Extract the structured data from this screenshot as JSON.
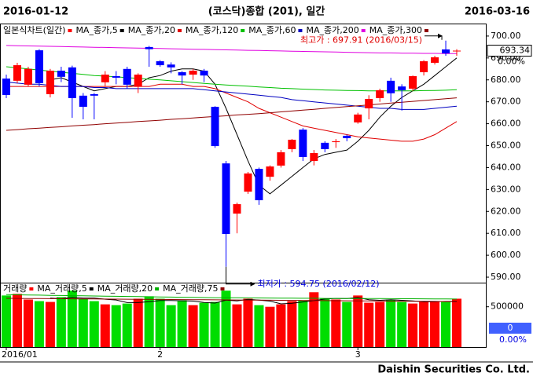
{
  "header": {
    "start_date": "2016-01-12",
    "title": "(코스닥)종합 (201), 일간",
    "end_date": "2016-03-16"
  },
  "footer": "Daishin Securities Co. Ltd.",
  "chart_data": [
    {
      "type": "candlestick",
      "name": "일본식차트(일간)",
      "up_color": "#ff0000",
      "down_color": "#0000ff",
      "categories": [
        "2016/01",
        null,
        null,
        null,
        null,
        null,
        null,
        null,
        null,
        null,
        null,
        null,
        null,
        null,
        "2",
        null,
        null,
        null,
        null,
        null,
        null,
        null,
        null,
        null,
        null,
        null,
        null,
        null,
        null,
        null,
        null,
        null,
        "3",
        null,
        null,
        null,
        null,
        null,
        null,
        null,
        null,
        null
      ],
      "open": [
        680.6,
        679.6,
        677.8,
        693.5,
        673.5,
        684.2,
        685.7,
        672.8,
        673.5,
        678.9,
        681.7,
        685,
        677,
        695,
        688.5,
        687,
        683.5,
        682.4,
        684.2,
        667.7,
        641.9,
        619,
        629,
        639.4,
        635.8,
        640.9,
        648.4,
        657.3,
        643,
        651.3,
        651.6,
        654.5,
        660.6,
        667,
        671.7,
        679.6,
        677,
        676,
        683.5,
        687.8,
        693.9,
        693
      ],
      "high": [
        682.4,
        687.8,
        686,
        694,
        685,
        686,
        686.5,
        674,
        674,
        684,
        684,
        686,
        683,
        695.5,
        689,
        688,
        684,
        685,
        685,
        668,
        643,
        624,
        638,
        640,
        641,
        648,
        653,
        658,
        648,
        652,
        653,
        655,
        665,
        673,
        676,
        681,
        678,
        682,
        689,
        691,
        697.91,
        694
      ],
      "low": [
        671.7,
        678.5,
        677,
        677,
        672,
        679,
        662.7,
        662,
        662,
        677,
        678,
        676,
        674,
        686,
        686,
        683,
        678,
        680,
        679,
        649,
        594.75,
        610,
        628,
        623,
        634,
        640,
        647,
        643,
        641,
        647,
        649,
        652,
        660,
        662,
        670,
        670,
        666,
        675,
        682,
        687,
        691,
        691
      ],
      "close": [
        673.1,
        686.7,
        685,
        678.5,
        684.2,
        681.4,
        671.7,
        667.7,
        672.8,
        682.4,
        681,
        677.8,
        682.4,
        694,
        686.7,
        685.7,
        682,
        684.2,
        682,
        649.8,
        609.7,
        623.3,
        637.3,
        625.1,
        640.5,
        647,
        652.7,
        644.8,
        646.6,
        648.4,
        652,
        653.4,
        664.2,
        671.3,
        675.3,
        673.9,
        675.3,
        681.7,
        688.5,
        690.3,
        692.1,
        693.34
      ],
      "series": [
        {
          "name": "MA_종가,5",
          "color": "#000000",
          "values": [
            null,
            null,
            null,
            null,
            680,
            681,
            679,
            677,
            675,
            676,
            677,
            677,
            678,
            681,
            682,
            684,
            685,
            685,
            684,
            678,
            667,
            655,
            643,
            632,
            628,
            632,
            636,
            640,
            644,
            646,
            647,
            648,
            652,
            657,
            663,
            668,
            672,
            675,
            678,
            682,
            686,
            690
          ]
        },
        {
          "name": "MA_종가,20",
          "color": "#e00000",
          "values": [
            677,
            677,
            677,
            677,
            677,
            677,
            677,
            677,
            677,
            677,
            677,
            677,
            677,
            677,
            678,
            678,
            678,
            677,
            677,
            676,
            674,
            672,
            670,
            667,
            665,
            663,
            661,
            659,
            658,
            657,
            656,
            655,
            654,
            653.5,
            653,
            652.5,
            652,
            652,
            653,
            655,
            658,
            661
          ]
        },
        {
          "name": "MA_종가,120",
          "color": "#00c000",
          "values": [
            686,
            685.5,
            685,
            684.5,
            684,
            683.5,
            683,
            682.5,
            682,
            681.7,
            681.4,
            681,
            680.7,
            680.3,
            680,
            679.6,
            679.2,
            678.8,
            678.4,
            678,
            677.7,
            677.4,
            677.1,
            676.8,
            676.5,
            676.2,
            676,
            675.8,
            675.6,
            675.4,
            675.3,
            675.2,
            675.1,
            675,
            675,
            675,
            675,
            675,
            675.1,
            675.2,
            675.3,
            675.5
          ]
        },
        {
          "name": "MA_종가,60",
          "color": "#0000c0",
          "values": [
            679,
            678.5,
            678,
            678,
            677.5,
            677,
            677,
            677,
            676.5,
            676.5,
            676,
            676,
            676,
            676,
            676,
            676,
            676,
            676,
            675.5,
            675,
            674.5,
            674,
            673.5,
            673,
            672.5,
            672,
            671,
            670.5,
            670,
            669.5,
            669,
            668.5,
            668,
            667.5,
            667,
            667,
            666.5,
            666.5,
            666.5,
            667,
            667.5,
            668
          ]
        },
        {
          "name": "MA_종가,200",
          "color": "#e000e0",
          "values": [
            695.7,
            695.6,
            695.5,
            695.4,
            695.3,
            695.2,
            695.1,
            695,
            694.9,
            694.8,
            694.7,
            694.6,
            694.5,
            694.4,
            694.3,
            694.2,
            694.1,
            694,
            693.9,
            693.8,
            693.7,
            693.6,
            693.5,
            693.4,
            693.3,
            693.2,
            693.1,
            693,
            692.9,
            692.8,
            692.7,
            692.6,
            692.5,
            692.4,
            692.3,
            692.3,
            692.2,
            692.2,
            692.1,
            692.1,
            692,
            692
          ]
        },
        {
          "name": "MA_종가,300",
          "color": "#900000",
          "values": [
            657,
            657.3,
            657.7,
            658,
            658.3,
            658.6,
            659,
            659.3,
            659.6,
            660,
            660.3,
            660.6,
            661,
            661.3,
            661.6,
            662,
            662.3,
            662.6,
            663,
            663.3,
            663.6,
            664,
            664.3,
            664.6,
            665,
            665.4,
            665.8,
            666.2,
            666.6,
            667,
            667.4,
            667.8,
            668.2,
            668.6,
            669,
            669.4,
            669.8,
            670.2,
            670.6,
            671,
            671.4,
            671.8
          ]
        }
      ],
      "ylim": [
        587.5,
        705.7
      ],
      "yticks": [
        {
          "value": 590,
          "label": "590.00"
        },
        {
          "value": 600,
          "label": "600.00"
        },
        {
          "value": 610,
          "label": "610.00"
        },
        {
          "value": 620,
          "label": "620.00"
        },
        {
          "value": 630,
          "label": "630.00"
        },
        {
          "value": 640,
          "label": "640.00"
        },
        {
          "value": 650,
          "label": "650.00"
        },
        {
          "value": 660,
          "label": "660.00"
        },
        {
          "value": 670,
          "label": "670.00"
        },
        {
          "value": 680,
          "label": "680.00"
        },
        {
          "value": 690,
          "label": "690.00"
        },
        {
          "value": 700,
          "label": "700.00"
        }
      ],
      "last_price": 693.34,
      "change_label": "0.00%",
      "high_label": "최고가 : 697.91 (2016/03/15)",
      "high_color": "#e00000",
      "low_label": "최저가 : 594.75 (2016/02/12)",
      "low_color": "#0000e0"
    },
    {
      "type": "bar",
      "name": "거래량",
      "up_color": "#ff0000",
      "down_color": "#00dd00",
      "values": [
        640000,
        660000,
        590000,
        570000,
        560000,
        620000,
        700000,
        600000,
        570000,
        530000,
        520000,
        540000,
        600000,
        630000,
        600000,
        520000,
        580000,
        520000,
        550000,
        560000,
        700000,
        530000,
        600000,
        520000,
        500000,
        530000,
        570000,
        580000,
        680000,
        600000,
        590000,
        560000,
        640000,
        550000,
        560000,
        590000,
        560000,
        540000,
        560000,
        570000,
        560000,
        600000
      ],
      "series": [
        {
          "name": "MA_거래량,5",
          "color": "#000000",
          "values": [
            null,
            null,
            null,
            null,
            608000,
            600000,
            618000,
            608000,
            608000,
            594000,
            584000,
            552000,
            552000,
            564000,
            578000,
            578000,
            574000,
            570000,
            554000,
            546000,
            582000,
            572000,
            592000,
            582000,
            570000,
            536000,
            544000,
            560000,
            576000,
            596000,
            604000,
            602000,
            614000,
            588000,
            580000,
            588000,
            580000,
            572000,
            562000,
            564000,
            566000,
            566000
          ]
        },
        {
          "name": "MA_거래량,20",
          "color": "#00b000",
          "values": [
            650000,
            648000,
            646000,
            644000,
            642000,
            640000,
            638000,
            636000,
            634000,
            632000,
            630000,
            628000,
            626000,
            624000,
            622000,
            620000,
            618000,
            616000,
            614000,
            612000,
            612000,
            611000,
            610000,
            609000,
            608000,
            607000,
            606000,
            605000,
            605000,
            604000,
            604000,
            603000,
            603000,
            602000,
            602000,
            601000,
            600000,
            600000,
            599000,
            598000,
            597000,
            596000
          ]
        },
        {
          "name": "MA_거래량,75",
          "color": "#900000",
          "values": [
            605000,
            604000,
            603000,
            602000,
            601000,
            600000,
            599000,
            598000,
            597000,
            596000,
            595000,
            594000,
            593000,
            592000,
            591000,
            590000,
            589000,
            588000,
            587000,
            586000,
            585000,
            584000,
            583000,
            582000,
            581000,
            580000,
            579000,
            578000,
            577000,
            576000,
            575000,
            574000,
            573000,
            572000,
            571000,
            570000,
            569000,
            568000,
            567000,
            566000,
            565000,
            564000
          ]
        }
      ],
      "ylim": [
        0,
        780000
      ],
      "yticks": [
        500000
      ],
      "last_value": 0,
      "change_label": "0.00%"
    }
  ]
}
